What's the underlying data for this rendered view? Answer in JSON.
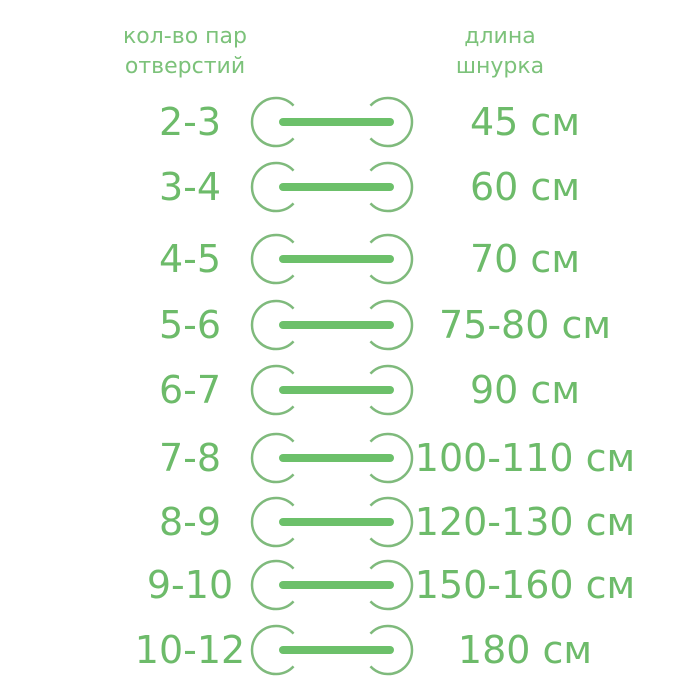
{
  "headers": {
    "left": [
      "кол-во пар",
      "отверстий"
    ],
    "right": [
      "длина",
      "шнурка"
    ]
  },
  "rows": [
    {
      "holes": "2-3",
      "length": "45 см"
    },
    {
      "holes": "3-4",
      "length": "60 см"
    },
    {
      "holes": "4-5",
      "length": "70 см"
    },
    {
      "holes": "5-6",
      "length": "75-80 см"
    },
    {
      "holes": "6-7",
      "length": "90 см"
    },
    {
      "holes": "7-8",
      "length": "100-110 см"
    },
    {
      "holes": "8-9",
      "length": "120-130 см"
    },
    {
      "holes": "9-10",
      "length": "150-160 см"
    },
    {
      "holes": "10-12",
      "length": "180 см"
    }
  ],
  "colors": {
    "text": "#6dbb6a",
    "circle": "#7fba7c",
    "bar": "#6cc06a"
  }
}
